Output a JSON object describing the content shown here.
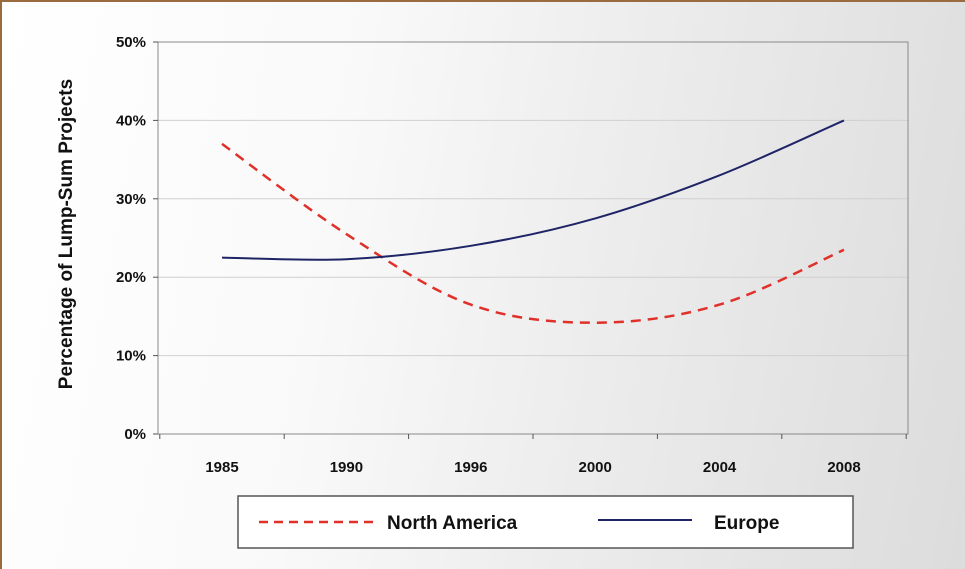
{
  "chart_data": {
    "type": "line",
    "title": "",
    "xlabel": "",
    "ylabel": "Percentage of Lump-Sum Projects",
    "x_ticks": [
      "1985",
      "1990",
      "1996",
      "2000",
      "2004",
      "2008"
    ],
    "y_ticks": [
      "0%",
      "10%",
      "20%",
      "30%",
      "40%",
      "50%"
    ],
    "ylim": [
      0,
      50
    ],
    "grid": "horizontal",
    "legend_position": "bottom",
    "series": [
      {
        "name": "North America",
        "style": "dashed",
        "color": "#e0302a",
        "x": [
          "1985",
          "1990",
          "1996",
          "2000",
          "2004",
          "2008"
        ],
        "values": [
          37,
          25.5,
          16.5,
          14.2,
          16.5,
          23.5
        ]
      },
      {
        "name": "Europe",
        "style": "solid",
        "color": "#1f2466",
        "x": [
          "1985",
          "1990",
          "1996",
          "2000",
          "2004",
          "2008"
        ],
        "values": [
          22.5,
          22.3,
          24,
          27.5,
          33,
          40
        ]
      }
    ]
  }
}
